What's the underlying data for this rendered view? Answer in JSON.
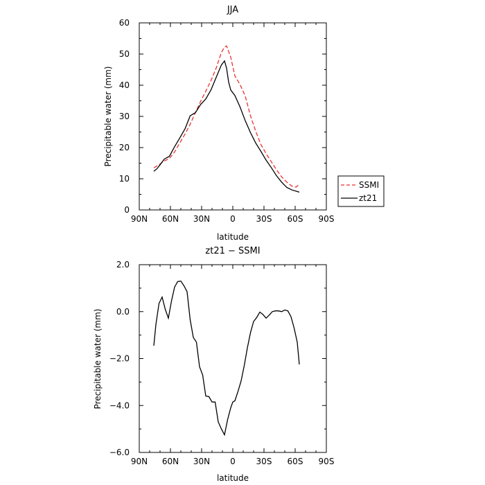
{
  "chart_data": [
    {
      "type": "line",
      "title": "JJA",
      "xlabel": "latitude",
      "ylabel": "Precipitable water (mm)",
      "x_ticks": [
        "90N",
        "60N",
        "30N",
        "0",
        "30S",
        "60S",
        "90S"
      ],
      "x_tick_values": [
        90,
        60,
        30,
        0,
        -30,
        -60,
        -90
      ],
      "xlim": [
        90,
        -90
      ],
      "ylim": [
        0,
        60
      ],
      "y_ticks": [
        "0",
        "10",
        "20",
        "30",
        "40",
        "50",
        "60"
      ],
      "y_tick_values": [
        0,
        10,
        20,
        30,
        40,
        50,
        60
      ],
      "legend_position": "right",
      "series": [
        {
          "name": "SSMI",
          "color": "#e8322f",
          "dash": true,
          "x": [
            76,
            71,
            66,
            61,
            56,
            51,
            46,
            41,
            36,
            31,
            26,
            21,
            16,
            11,
            8,
            6,
            2,
            -2,
            -7,
            -12,
            -17,
            -22,
            -27,
            -32,
            -37,
            -42,
            -47,
            -52,
            -57,
            -61,
            -64
          ],
          "y": [
            13.5,
            14.5,
            15.7,
            16.5,
            18.6,
            21.5,
            24.3,
            27.5,
            31.2,
            34.8,
            38.1,
            41.5,
            45.5,
            50.5,
            52.2,
            52.6,
            49.0,
            43.0,
            40.2,
            36.5,
            30.2,
            25.3,
            21.0,
            18.1,
            15.5,
            12.9,
            10.6,
            8.9,
            7.6,
            7.3,
            8.3
          ]
        },
        {
          "name": "zt21",
          "color": "#000000",
          "dash": false,
          "x": [
            76,
            73,
            70,
            66,
            61,
            56,
            51,
            46,
            41,
            36,
            31,
            26,
            21,
            16,
            11,
            8,
            6,
            4,
            2,
            -2,
            -7,
            -12,
            -17,
            -22,
            -27,
            -32,
            -37,
            -42,
            -47,
            -52,
            -57,
            -62,
            -64
          ],
          "y": [
            12.4,
            13.2,
            14.5,
            16.3,
            17.2,
            20.3,
            23.1,
            26.0,
            30.2,
            31.2,
            33.8,
            35.6,
            38.5,
            42.5,
            46.5,
            47.8,
            45.5,
            41.0,
            38.5,
            36.7,
            33.0,
            28.6,
            24.8,
            21.5,
            18.8,
            16.0,
            13.6,
            11.0,
            8.9,
            7.2,
            6.4,
            5.9,
            5.7
          ]
        }
      ]
    },
    {
      "type": "line",
      "title": "zt21 − SSMI",
      "xlabel": "latitude",
      "ylabel": "Precipitable water (mm)",
      "x_ticks": [
        "90N",
        "60N",
        "30N",
        "0",
        "30S",
        "60S",
        "90S"
      ],
      "x_tick_values": [
        90,
        60,
        30,
        0,
        -30,
        -60,
        -90
      ],
      "xlim": [
        90,
        -90
      ],
      "ylim": [
        -6,
        2
      ],
      "y_ticks": [
        "−6.0",
        "−4.0",
        "−2.0",
        "0.0",
        "2.0"
      ],
      "y_tick_values": [
        -6,
        -4,
        -2,
        0,
        2
      ],
      "series": [
        {
          "color": "#000000",
          "x": [
            76,
            74,
            71,
            68,
            65,
            62,
            59,
            56,
            53,
            50,
            47,
            44,
            41,
            38,
            35,
            32,
            29,
            26,
            23,
            20,
            17,
            14,
            11,
            8,
            5,
            2,
            0,
            -2,
            -5,
            -8,
            -11,
            -14,
            -17,
            -20,
            -23,
            -26,
            -29,
            -32,
            -35,
            -38,
            -41,
            -44,
            -47,
            -50,
            -53,
            -56,
            -59,
            -62,
            -64
          ],
          "y": [
            -1.45,
            -0.55,
            0.35,
            0.62,
            0.1,
            -0.28,
            0.45,
            1.05,
            1.28,
            1.3,
            1.1,
            0.85,
            -0.35,
            -1.1,
            -1.3,
            -2.35,
            -2.7,
            -3.6,
            -3.62,
            -3.85,
            -3.85,
            -4.7,
            -5.0,
            -5.25,
            -4.6,
            -4.1,
            -3.85,
            -3.8,
            -3.4,
            -2.95,
            -2.3,
            -1.55,
            -0.9,
            -0.42,
            -0.25,
            -0.02,
            -0.12,
            -0.28,
            -0.15,
            0.0,
            0.03,
            0.03,
            0.0,
            0.07,
            0.03,
            -0.22,
            -0.7,
            -1.3,
            -2.25
          ]
        }
      ]
    }
  ]
}
